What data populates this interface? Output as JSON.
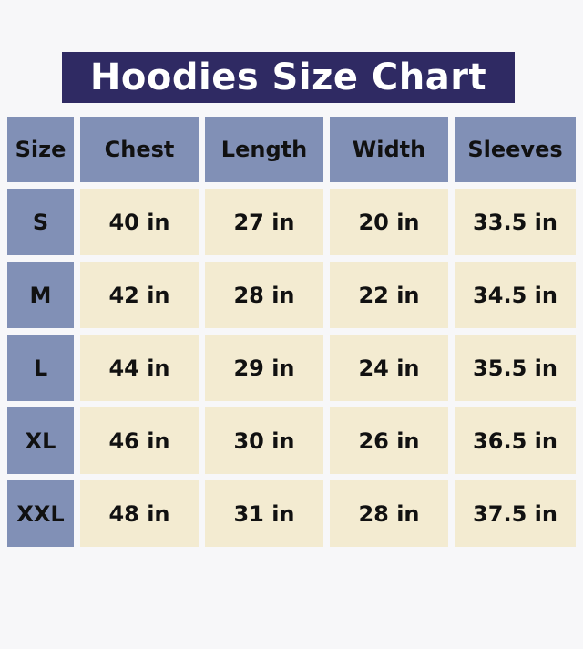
{
  "title": "Hoodies Size Chart",
  "colors": {
    "title_bg": "#2f2a63",
    "header_bg": "#8190b6",
    "cell_bg": "#f3ebd1"
  },
  "table": {
    "headers": [
      "Size",
      "Chest",
      "Length",
      "Width",
      "Sleeves"
    ],
    "rows": [
      [
        "S",
        "40 in",
        "27 in",
        "20 in",
        "33.5 in"
      ],
      [
        "M",
        "42 in",
        "28 in",
        "22 in",
        "34.5 in"
      ],
      [
        "L",
        "44 in",
        "29 in",
        "24 in",
        "35.5 in"
      ],
      [
        "XL",
        "46 in",
        "30 in",
        "26 in",
        "36.5 in"
      ],
      [
        "XXL",
        "48 in",
        "31 in",
        "28 in",
        "37.5 in"
      ]
    ]
  }
}
